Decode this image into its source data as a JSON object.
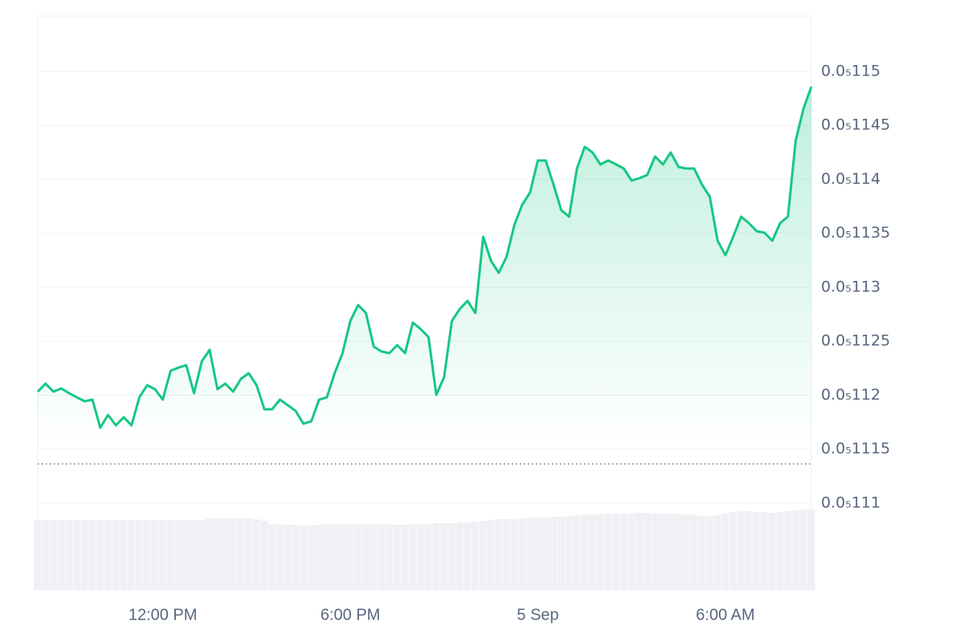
{
  "chart_data": {
    "type": "line",
    "color": "#16c784",
    "categories": [
      null,
      null,
      null,
      null,
      null,
      null,
      null,
      null,
      null,
      null,
      null,
      null,
      null,
      null,
      null,
      null,
      "12:00 PM",
      null,
      null,
      null,
      null,
      null,
      null,
      null,
      null,
      null,
      null,
      null,
      null,
      null,
      null,
      null,
      null,
      null,
      null,
      null,
      null,
      null,
      null,
      null,
      "6:00 PM",
      null,
      null,
      null,
      null,
      null,
      null,
      null,
      null,
      null,
      null,
      null,
      null,
      null,
      null,
      null,
      null,
      null,
      null,
      null,
      null,
      null,
      null,
      null,
      "5 Sep",
      null,
      null,
      null,
      null,
      null,
      null,
      null,
      null,
      null,
      null,
      null,
      null,
      null,
      null,
      null,
      null,
      null,
      null,
      null,
      null,
      null,
      null,
      null,
      "6:00 AM",
      null,
      null,
      null,
      null,
      null,
      null,
      null,
      null,
      null,
      null,
      null
    ],
    "values": [
      1.12033e-06,
      1.12108e-06,
      1.12033e-06,
      1.12063e-06,
      1.12019e-06,
      1.11981e-06,
      1.11944e-06,
      1.11959e-06,
      1.11699e-06,
      1.11818e-06,
      1.11721e-06,
      1.11796e-06,
      1.11721e-06,
      1.11981e-06,
      1.12093e-06,
      1.12056e-06,
      1.11959e-06,
      1.12227e-06,
      1.12256e-06,
      1.12279e-06,
      1.12019e-06,
      1.12316e-06,
      1.1242e-06,
      1.12056e-06,
      1.12108e-06,
      1.12033e-06,
      1.12152e-06,
      1.12204e-06,
      1.12093e-06,
      1.1187e-06,
      1.1187e-06,
      1.11959e-06,
      1.11907e-06,
      1.11855e-06,
      1.11736e-06,
      1.11758e-06,
      1.11959e-06,
      1.11981e-06,
      1.12204e-06,
      1.1239e-06,
      1.12688e-06,
      1.12836e-06,
      1.12762e-06,
      1.1245e-06,
      1.12405e-06,
      1.1239e-06,
      1.12465e-06,
      1.1239e-06,
      1.12673e-06,
      1.12613e-06,
      1.12539e-06,
      1.12004e-06,
      1.12167e-06,
      1.12688e-06,
      1.12799e-06,
      1.12874e-06,
      1.12762e-06,
      1.13468e-06,
      1.13245e-06,
      1.13134e-06,
      1.13283e-06,
      1.1358e-06,
      1.13766e-06,
      1.13877e-06,
      1.14175e-06,
      1.14175e-06,
      1.13952e-06,
      1.13714e-06,
      1.13654e-06,
      1.141e-06,
      1.14301e-06,
      1.14249e-06,
      1.14138e-06,
      1.14175e-06,
      1.14138e-06,
      1.141e-06,
      1.13989e-06,
      1.14011e-06,
      1.14041e-06,
      1.14212e-06,
      1.14138e-06,
      1.14249e-06,
      1.14115e-06,
      1.141e-06,
      1.141e-06,
      1.13952e-06,
      1.1384e-06,
      1.13431e-06,
      1.13297e-06,
      1.13468e-06,
      1.13654e-06,
      1.13595e-06,
      1.1352e-06,
      1.13506e-06,
      1.13431e-06,
      1.13595e-06,
      1.13654e-06,
      1.14361e-06,
      1.14658e-06,
      1.14859e-06
    ],
    "ylim": [
      1.10197e-06,
      1.15513e-06
    ],
    "yticks": [
      {
        "value": 1.15e-06,
        "label": "0.0₅115"
      },
      {
        "value": 1.145e-06,
        "label": "0.0₅1145"
      },
      {
        "value": 1.14e-06,
        "label": "0.0₅114"
      },
      {
        "value": 1.135e-06,
        "label": "0.0₅1135"
      },
      {
        "value": 1.13e-06,
        "label": "0.0₅113"
      },
      {
        "value": 1.125e-06,
        "label": "0.0₅1125"
      },
      {
        "value": 1.12e-06,
        "label": "0.0₅112"
      },
      {
        "value": 1.115e-06,
        "label": "0.0₅1115"
      },
      {
        "value": 1.11e-06,
        "label": "0.0₅111"
      }
    ],
    "grid": true,
    "reference_line": 1.11364e-06,
    "volume": {
      "color": "#eef0f3",
      "ylim": [
        0,
        100
      ],
      "values": [
        87,
        87,
        87,
        87,
        87,
        87,
        87,
        87,
        87,
        87,
        87,
        87,
        87,
        87,
        87,
        87,
        87,
        87,
        87,
        87,
        87,
        87,
        89,
        89,
        89,
        89,
        89,
        89,
        88,
        86,
        82,
        82,
        81,
        81,
        80,
        80,
        81,
        82,
        82,
        82,
        82,
        82,
        82,
        82,
        82,
        82,
        81,
        81,
        82,
        82,
        82,
        83,
        83,
        83,
        84,
        84,
        85,
        86,
        87,
        88,
        88,
        88,
        89,
        90,
        90,
        90,
        91,
        91,
        92,
        93,
        94,
        94,
        94,
        95,
        95,
        95,
        95,
        96,
        96,
        95,
        95,
        95,
        94,
        94,
        94,
        92,
        92,
        93,
        95,
        97,
        98,
        98,
        97,
        97,
        96,
        97,
        98,
        99,
        100,
        100
      ]
    }
  }
}
